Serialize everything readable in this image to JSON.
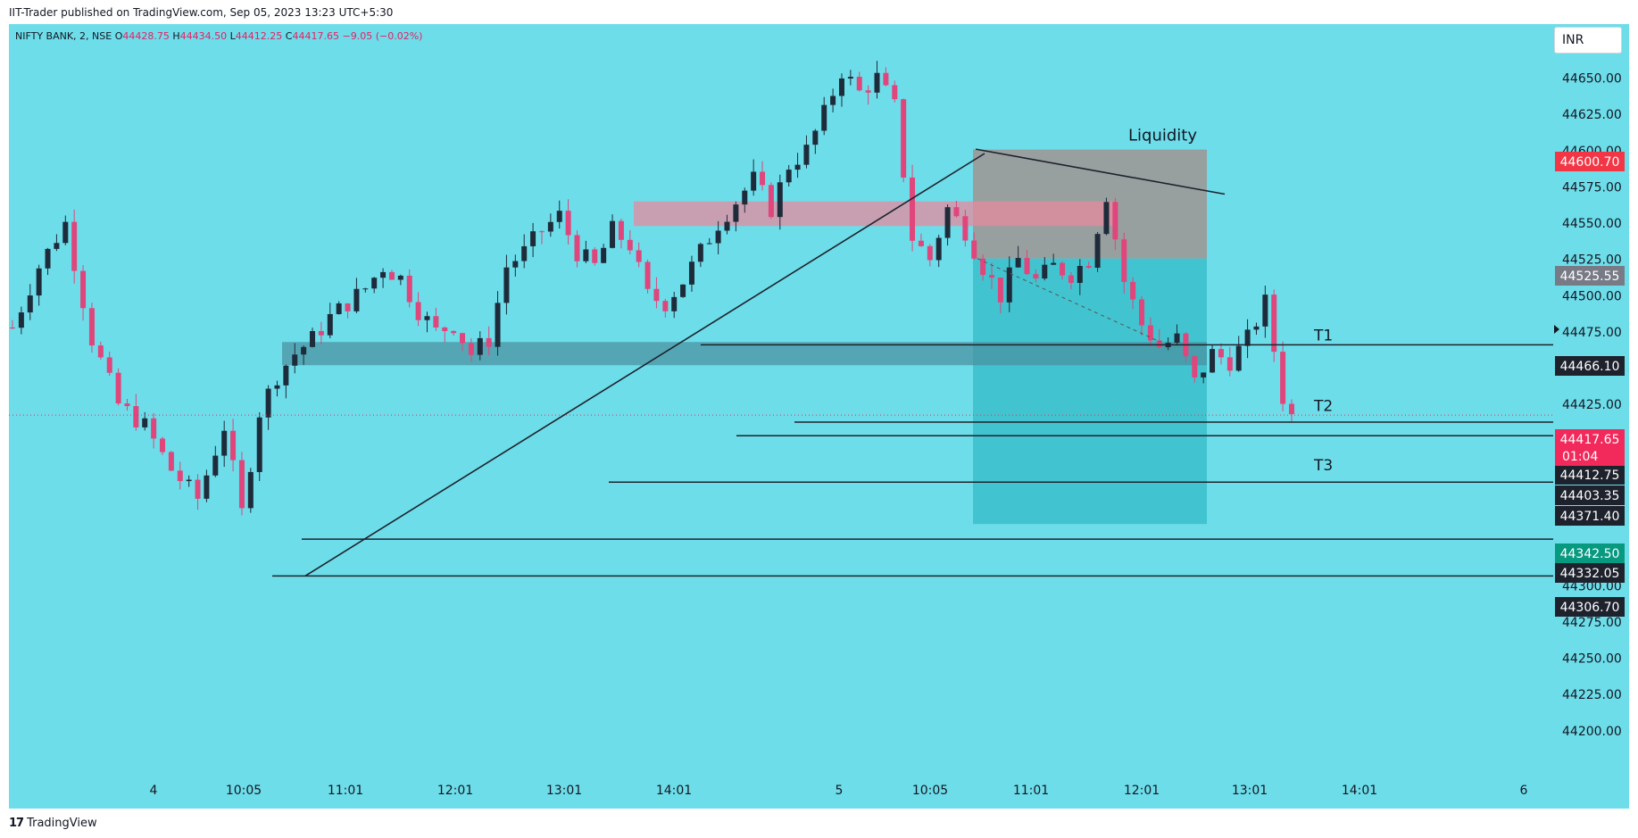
{
  "header": {
    "published_text": "IIT-Trader published on TradingView.com, Sep 05, 2023 13:23 UTC+5:30"
  },
  "symbol": {
    "title": "NIFTY BANK, 2, NSE",
    "o_label": "O",
    "o": "44428.75",
    "h_label": "H",
    "h": "44434.50",
    "l_label": "L",
    "l": "44412.25",
    "c_label": "C",
    "c": "44417.65",
    "change": "−9.05 (−0.02%)"
  },
  "currency": "INR",
  "footer": {
    "brand": "TradingView",
    "logo_glyph": "17"
  },
  "colors": {
    "background": "#6ddde9",
    "up": "#1e2b3a",
    "down": "#e0457b",
    "last_price": "#f2295b",
    "red_tag": "#f23645",
    "grey_tag": "#787b86",
    "dark_tag": "#1e222d",
    "teal_tag": "#089981",
    "liquidity_zone": "#9b9b9b",
    "target_zone": "#3cc1cc",
    "supply_zone": "#e58a9e",
    "demand_zone": "#4a8f9d"
  },
  "chart_data": {
    "type": "candlestick",
    "symbol": "NIFTY BANK",
    "interval": "2",
    "exchange": "NSE",
    "ylim": [
      44190,
      44670
    ],
    "y_ticks": [
      "44650.00",
      "44625.00",
      "44600.00",
      "44575.00",
      "44550.00",
      "44525.00",
      "44500.00",
      "44475.00",
      "44450.00",
      "44425.00",
      "44400.00",
      "44375.00",
      "44350.00",
      "44325.00",
      "44300.00",
      "44275.00",
      "44250.00",
      "44225.00",
      "44200.00"
    ],
    "x_ticks": [
      "4",
      "10:05",
      "11:01",
      "12:01",
      "13:01",
      "14:01",
      "5",
      "10:05",
      "11:01",
      "12:01",
      "13:01",
      "14:01",
      "6"
    ],
    "ohlc_path": [
      [
        0,
        44478
      ],
      [
        3,
        44520
      ],
      [
        6,
        44550
      ],
      [
        9,
        44470
      ],
      [
        12,
        44425
      ],
      [
        15,
        44410
      ],
      [
        18,
        44380
      ],
      [
        21,
        44360
      ],
      [
        24,
        44410
      ],
      [
        26,
        44350
      ],
      [
        28,
        44420
      ],
      [
        30,
        44445
      ],
      [
        32,
        44460
      ],
      [
        34,
        44470
      ],
      [
        36,
        44485
      ],
      [
        38,
        44495
      ],
      [
        40,
        44505
      ],
      [
        42,
        44520
      ],
      [
        44,
        44512
      ],
      [
        46,
        44490
      ],
      [
        48,
        44475
      ],
      [
        50,
        44480
      ],
      [
        52,
        44460
      ],
      [
        54,
        44470
      ],
      [
        56,
        44520
      ],
      [
        58,
        44530
      ],
      [
        60,
        44545
      ],
      [
        62,
        44555
      ],
      [
        64,
        44530
      ],
      [
        66,
        44520
      ],
      [
        68,
        44545
      ],
      [
        70,
        44535
      ],
      [
        72,
        44500
      ],
      [
        74,
        44495
      ],
      [
        76,
        44510
      ],
      [
        78,
        44530
      ],
      [
        80,
        44550
      ],
      [
        82,
        44565
      ],
      [
        84,
        44580
      ],
      [
        86,
        44560
      ],
      [
        88,
        44590
      ],
      [
        90,
        44600
      ],
      [
        92,
        44625
      ],
      [
        94,
        44655
      ],
      [
        96,
        44640
      ],
      [
        98,
        44650
      ],
      [
        100,
        44630
      ],
      [
        102,
        44540
      ],
      [
        104,
        44525
      ],
      [
        106,
        44560
      ],
      [
        108,
        44545
      ],
      [
        110,
        44520
      ],
      [
        112,
        44500
      ],
      [
        114,
        44525
      ],
      [
        116,
        44510
      ],
      [
        118,
        44520
      ],
      [
        120,
        44515
      ],
      [
        122,
        44525
      ],
      [
        124,
        44570
      ],
      [
        126,
        44510
      ],
      [
        128,
        44480
      ],
      [
        130,
        44465
      ],
      [
        132,
        44470
      ],
      [
        134,
        44440
      ],
      [
        136,
        44460
      ],
      [
        138,
        44455
      ],
      [
        140,
        44470
      ],
      [
        142,
        44495
      ],
      [
        144,
        44430
      ],
      [
        145,
        44417
      ]
    ],
    "annotations": {
      "labels": [
        "Liquidity",
        "T1",
        "T2",
        "T3"
      ],
      "levels": [
        {
          "label": "T1",
          "price": 44466.1
        },
        {
          "label": "T2",
          "price": 44412.75
        },
        {
          "label": "T3",
          "price": 44371.4
        }
      ],
      "price_tags": [
        {
          "value": "44600.70",
          "color": "red"
        },
        {
          "value": "44525.55",
          "color": "grey"
        },
        {
          "value": "44466.10",
          "color": "dark"
        },
        {
          "value": "44417.65",
          "color": "last"
        },
        {
          "value": "44412.75",
          "color": "dark"
        },
        {
          "value": "44403.35",
          "color": "dark"
        },
        {
          "value": "44371.40",
          "color": "dark"
        },
        {
          "value": "44342.50",
          "color": "teal"
        },
        {
          "value": "44332.05",
          "color": "dark"
        },
        {
          "value": "44306.70",
          "color": "dark"
        }
      ],
      "countdown": "01:04",
      "liquidity_zone": {
        "from_price": 44525.55,
        "to_price": 44600.7
      },
      "target_zone": {
        "from_price": 44342.5,
        "to_price": 44525.55
      },
      "supply_zone": {
        "from_price": 44548,
        "to_price": 44565
      },
      "demand_zone": {
        "from_price": 44452,
        "to_price": 44468
      },
      "horizontal_lines": [
        44466.1,
        44412.75,
        44403.35,
        44371.4,
        44332.05,
        44306.7
      ],
      "trendlines": [
        "rising support from 44306.70 low to 44600 peak",
        "falling resistance across the liquidity zone"
      ]
    },
    "grid": false,
    "legend": "top-left"
  }
}
